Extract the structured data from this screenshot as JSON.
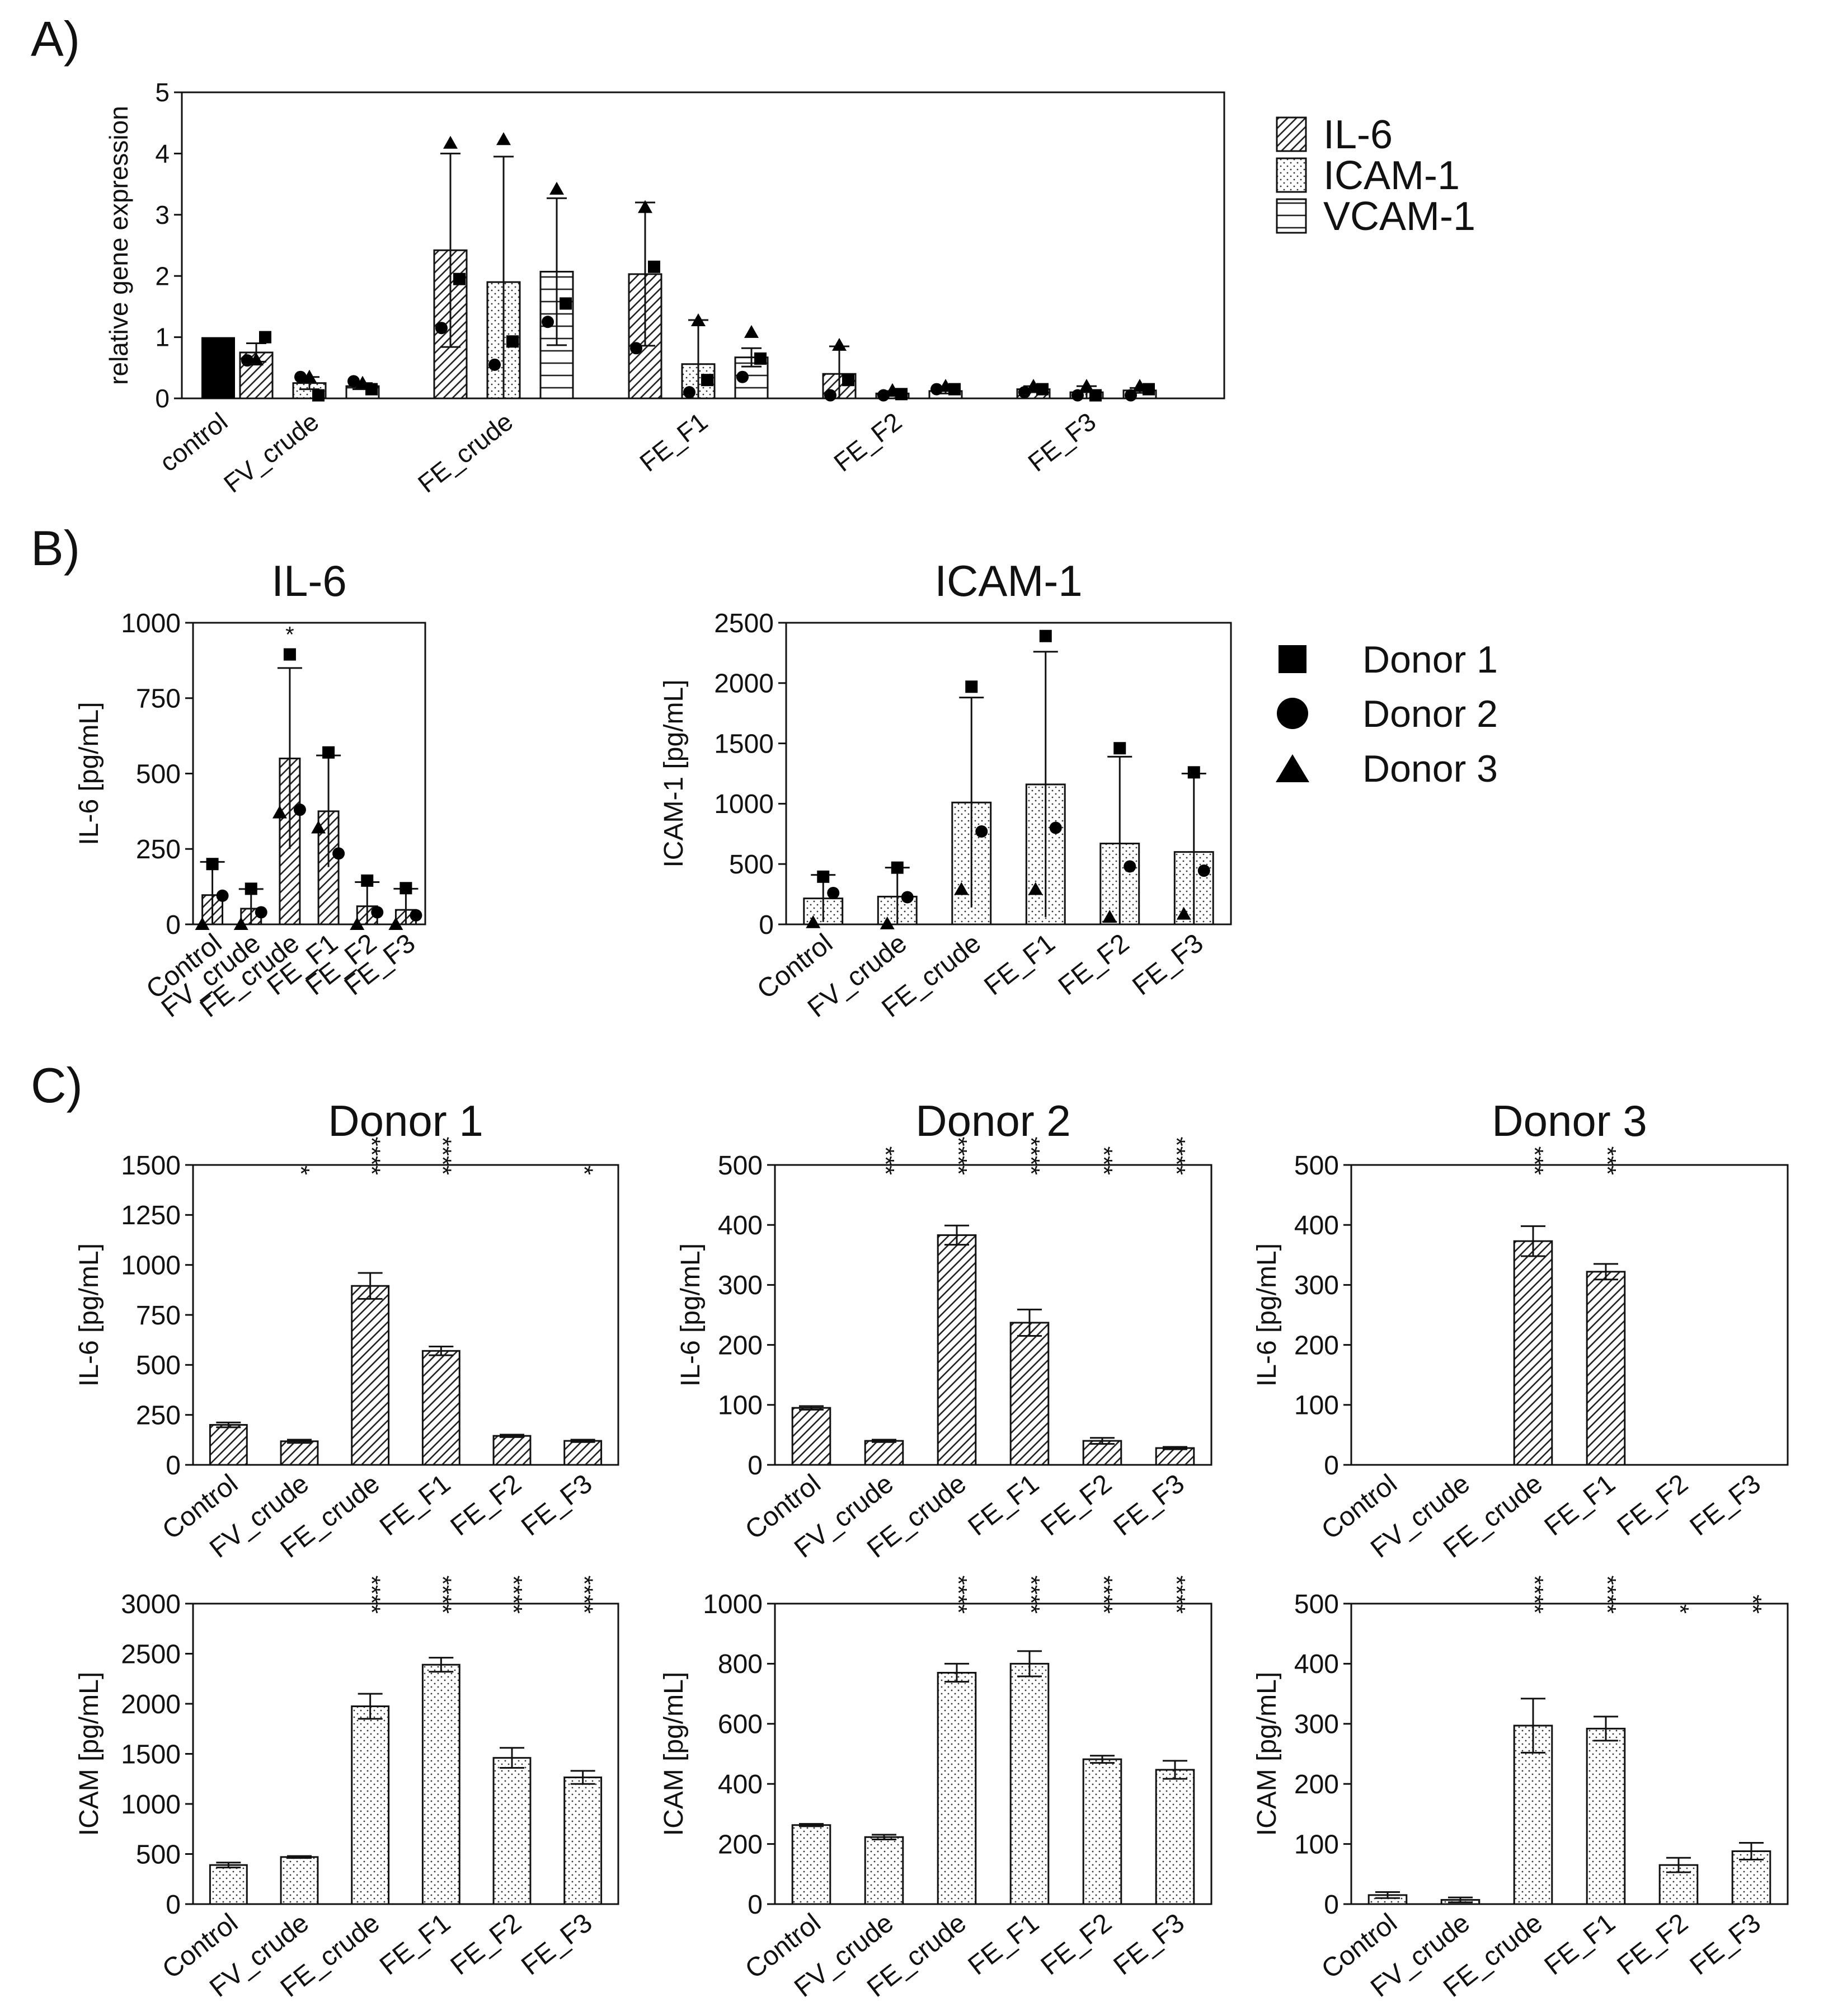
{
  "panel_labels": [
    "A)",
    "B)",
    "C)"
  ],
  "chart_data": [
    {
      "id": "A",
      "type": "bar",
      "title": "",
      "xlabel": "",
      "ylabel": "relative gene expression",
      "ylim": [
        0,
        5
      ],
      "yticks": [
        "0",
        "1",
        "2",
        "3",
        "4",
        "5"
      ],
      "categories": [
        "control",
        "FV_crude",
        "FE_crude",
        "FE_F1",
        "FE_F2",
        "FE_F3"
      ],
      "control_value": 1.0,
      "series": [
        {
          "name": "IL-6",
          "pattern": "diag",
          "values": [
            1.0,
            0.75,
            2.42,
            2.03,
            0.4,
            0.15
          ],
          "errors": [
            0,
            0.15,
            1.58,
            1.17,
            0.45,
            0.05
          ],
          "points": [
            [
              null,
              null,
              null
            ],
            [
              1.0,
              0.62,
              0.63
            ],
            [
              1.95,
              1.15,
              4.17
            ],
            [
              2.15,
              0.82,
              3.12
            ],
            [
              0.3,
              0.05,
              0.87
            ],
            [
              0.15,
              0.1,
              0.2
            ]
          ]
        },
        {
          "name": "ICAM-1",
          "pattern": "dots",
          "values": [
            null,
            0.25,
            1.9,
            0.56,
            0.08,
            0.1
          ],
          "errors": [
            0,
            0.1,
            2.05,
            0.72,
            0.04,
            0.1
          ],
          "points": [
            [
              null,
              null,
              null
            ],
            [
              0.05,
              0.35,
              0.35
            ],
            [
              0.93,
              0.55,
              4.23
            ],
            [
              0.3,
              0.1,
              1.27
            ],
            [
              0.07,
              0.05,
              0.13
            ],
            [
              0.05,
              0.05,
              0.2
            ]
          ]
        },
        {
          "name": "VCAM-1",
          "pattern": "hlines",
          "values": [
            null,
            0.2,
            2.07,
            0.67,
            0.12,
            0.13
          ],
          "errors": [
            0,
            0.05,
            1.2,
            0.15,
            0.04,
            0.04
          ],
          "points": [
            [
              null,
              null,
              null
            ],
            [
              0.15,
              0.28,
              0.25
            ],
            [
              1.55,
              1.25,
              3.42
            ],
            [
              0.65,
              0.35,
              1.08
            ],
            [
              0.15,
              0.15,
              0.2
            ],
            [
              0.15,
              0.05,
              0.2
            ]
          ]
        }
      ],
      "legend": [
        "IL-6",
        "ICAM-1",
        "VCAM-1"
      ]
    },
    {
      "id": "B1",
      "type": "bar",
      "title": "IL-6",
      "xlabel": "",
      "ylabel": "IL-6 [pg/mL]",
      "pattern": "diag",
      "ylim": [
        0,
        1000
      ],
      "yticks": [
        "0",
        "250",
        "500",
        "750",
        "1000"
      ],
      "categories": [
        "Control",
        "FV_crude",
        "FE_crude",
        "FE_F1",
        "FE_F2",
        "FE_F3"
      ],
      "values": [
        97,
        52,
        550,
        375,
        60,
        48
      ],
      "errors": [
        110,
        65,
        300,
        185,
        80,
        70
      ],
      "donors": [
        [
          200,
          95,
          0
        ],
        [
          118,
          40,
          0
        ],
        [
          895,
          380,
          370
        ],
        [
          570,
          235,
          320
        ],
        [
          145,
          40,
          0
        ],
        [
          120,
          30,
          0
        ]
      ],
      "annotations": [
        "",
        "",
        "*",
        "",
        "",
        ""
      ]
    },
    {
      "id": "B2",
      "type": "bar",
      "title": "ICAM-1",
      "xlabel": "",
      "ylabel": "ICAM-1 [pg/mL]",
      "pattern": "dots",
      "ylim": [
        0,
        2500
      ],
      "yticks": [
        "0",
        "500",
        "1000",
        "1500",
        "2000",
        "2500"
      ],
      "categories": [
        "Control",
        "FV_crude",
        "FE_crude",
        "FE_F1",
        "FE_F2",
        "FE_F3"
      ],
      "values": [
        215,
        230,
        1010,
        1160,
        670,
        600
      ],
      "errors": [
        195,
        240,
        870,
        1100,
        720,
        650
      ],
      "donors": [
        [
          395,
          260,
          15
        ],
        [
          470,
          225,
          5
        ],
        [
          1970,
          770,
          290
        ],
        [
          2390,
          800,
          290
        ],
        [
          1460,
          480,
          60
        ],
        [
          1260,
          445,
          85
        ]
      ],
      "annotations": [
        "",
        "",
        "",
        "",
        "",
        ""
      ]
    },
    {
      "id": "C1a",
      "type": "bar",
      "title": "Donor 1",
      "xlabel": "",
      "ylabel": "IL-6 [pg/mL]",
      "pattern": "diag",
      "ylim": [
        0,
        1500
      ],
      "yticks": [
        "0",
        "250",
        "500",
        "750",
        "1000",
        "1250",
        "1500"
      ],
      "categories": [
        "Control",
        "FV_crude",
        "FE_crude",
        "FE_F1",
        "FE_F2",
        "FE_F3"
      ],
      "values": [
        200,
        118,
        895,
        570,
        145,
        120
      ],
      "errors": [
        12,
        8,
        65,
        22,
        6,
        6
      ],
      "annotations": [
        "",
        "*",
        "****",
        "****",
        "",
        "*"
      ]
    },
    {
      "id": "C2a",
      "type": "bar",
      "title": "Donor 2",
      "xlabel": "",
      "ylabel": "IL-6 [pg/mL]",
      "pattern": "diag",
      "ylim": [
        0,
        500
      ],
      "yticks": [
        "0",
        "100",
        "200",
        "300",
        "400",
        "500"
      ],
      "categories": [
        "Control",
        "FV_crude",
        "FE_crude",
        "FE_F1",
        "FE_F2",
        "FE_F3"
      ],
      "values": [
        95,
        40,
        383,
        237,
        40,
        28
      ],
      "errors": [
        3,
        2,
        16,
        22,
        5,
        2
      ],
      "annotations": [
        "",
        "***",
        "****",
        "****",
        "***",
        "****"
      ]
    },
    {
      "id": "C3a",
      "type": "bar",
      "title": "Donor 3",
      "xlabel": "",
      "ylabel": "IL-6 [pg/mL]",
      "pattern": "diag",
      "ylim": [
        0,
        500
      ],
      "yticks": [
        "0",
        "100",
        "200",
        "300",
        "400",
        "500"
      ],
      "categories": [
        "Control",
        "FV_crude",
        "FE_crude",
        "FE_F1",
        "FE_F2",
        "FE_F3"
      ],
      "values": [
        0,
        0,
        373,
        322,
        0,
        0
      ],
      "errors": [
        0,
        0,
        25,
        13,
        0,
        0
      ],
      "annotations": [
        "",
        "",
        "***",
        "***",
        "",
        ""
      ]
    },
    {
      "id": "C1b",
      "type": "bar",
      "title": "",
      "xlabel": "",
      "ylabel": "ICAM [pg/mL]",
      "pattern": "dots",
      "ylim": [
        0,
        3000
      ],
      "yticks": [
        "0",
        "500",
        "1000",
        "1500",
        "2000",
        "2500",
        "3000"
      ],
      "categories": [
        "Control",
        "FV_crude",
        "FE_crude",
        "FE_F1",
        "FE_F2",
        "FE_F3"
      ],
      "values": [
        390,
        470,
        1975,
        2390,
        1460,
        1265
      ],
      "errors": [
        25,
        10,
        125,
        70,
        100,
        65
      ],
      "annotations": [
        "",
        "",
        "****",
        "****",
        "****",
        "****"
      ]
    },
    {
      "id": "C2b",
      "type": "bar",
      "title": "",
      "xlabel": "",
      "ylabel": "ICAM [pg/mL]",
      "pattern": "dots",
      "ylim": [
        0,
        1000
      ],
      "yticks": [
        "0",
        "200",
        "400",
        "600",
        "800",
        "1000"
      ],
      "categories": [
        "Control",
        "FV_crude",
        "FE_crude",
        "FE_F1",
        "FE_F2",
        "FE_F3"
      ],
      "values": [
        263,
        223,
        770,
        800,
        482,
        447
      ],
      "errors": [
        4,
        8,
        30,
        42,
        12,
        30
      ],
      "annotations": [
        "",
        "",
        "****",
        "****",
        "****",
        "****"
      ]
    },
    {
      "id": "C3b",
      "type": "bar",
      "title": "",
      "xlabel": "",
      "ylabel": "ICAM [pg/mL]",
      "pattern": "dots",
      "ylim": [
        0,
        500
      ],
      "yticks": [
        "0",
        "100",
        "200",
        "300",
        "400",
        "500"
      ],
      "categories": [
        "Control",
        "FV_crude",
        "FE_crude",
        "FE_F1",
        "FE_F2",
        "FE_F3"
      ],
      "values": [
        15,
        7,
        297,
        292,
        65,
        88
      ],
      "errors": [
        5,
        4,
        45,
        20,
        12,
        14
      ],
      "annotations": [
        "",
        "",
        "****",
        "****",
        "*",
        "**"
      ]
    }
  ],
  "legend_A": [
    {
      "label": "IL-6",
      "pattern": "diag"
    },
    {
      "label": "ICAM-1",
      "pattern": "dots"
    },
    {
      "label": "VCAM-1",
      "pattern": "hlines"
    }
  ],
  "legend_B": [
    {
      "label": "Donor 1",
      "marker": "square"
    },
    {
      "label": "Donor 2",
      "marker": "circle"
    },
    {
      "label": "Donor 3",
      "marker": "triangle"
    }
  ]
}
